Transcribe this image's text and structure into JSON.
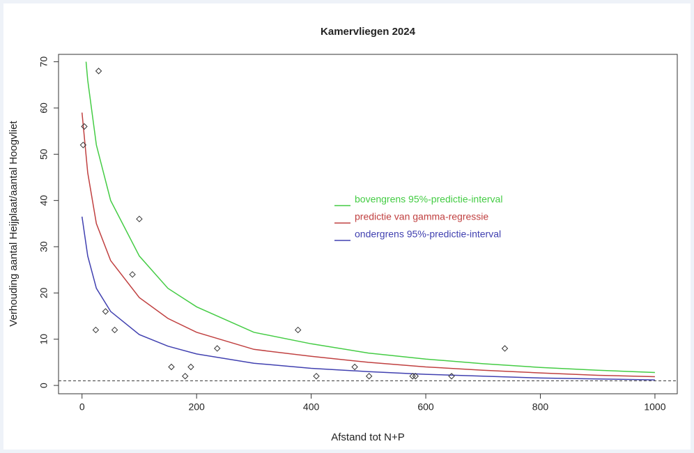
{
  "chart_data": {
    "type": "scatter",
    "title": "Kamervliegen 2024",
    "xlabel": "Afstand tot N+P",
    "ylabel": "Verhouding aantal Heijplaat/aantal Hoogvliet",
    "x": [
      29,
      4,
      2,
      100,
      88,
      41,
      24,
      57,
      377,
      738,
      236,
      156,
      190,
      476,
      180,
      409,
      501,
      577,
      582,
      645
    ],
    "values": [
      68,
      56,
      52,
      36,
      24,
      16,
      12,
      12,
      12,
      8,
      8,
      4,
      4,
      4,
      2,
      2,
      2,
      2,
      2,
      2
    ],
    "series": [
      {
        "name": "bovengrens 95%-predictie-interval",
        "color": "#44cc44",
        "x": [
          7,
          10,
          25,
          50,
          100,
          150,
          200,
          300,
          400,
          500,
          600,
          700,
          800,
          900,
          1000
        ],
        "values": [
          70,
          66,
          52,
          40,
          28,
          21,
          17,
          11.5,
          9,
          7,
          5.7,
          4.7,
          3.9,
          3.3,
          2.8
        ]
      },
      {
        "name": "predictie van gamma-regressie",
        "color": "#c04040",
        "x": [
          0,
          10,
          25,
          50,
          100,
          150,
          200,
          300,
          400,
          500,
          600,
          700,
          800,
          900,
          1000
        ],
        "values": [
          59,
          46,
          35,
          27,
          19,
          14.5,
          11.5,
          7.8,
          6.3,
          5,
          4,
          3.3,
          2.7,
          2.2,
          1.9
        ]
      },
      {
        "name": "ondergrens 95%-predictie-interval",
        "color": "#4040b0",
        "x": [
          0,
          10,
          25,
          50,
          100,
          150,
          200,
          300,
          400,
          500,
          600,
          700,
          800,
          900,
          1000
        ],
        "values": [
          36.5,
          28,
          21,
          16,
          11,
          8.5,
          6.8,
          4.8,
          3.7,
          3,
          2.4,
          2,
          1.6,
          1.4,
          1.2
        ]
      }
    ],
    "hline": 1,
    "xlim": [
      -41,
      1039
    ],
    "ylim": [
      -1.8,
      71.6
    ],
    "xticks": [
      0,
      200,
      400,
      600,
      800,
      1000
    ],
    "yticks": [
      0,
      10,
      20,
      30,
      40,
      50,
      60,
      70
    ]
  }
}
